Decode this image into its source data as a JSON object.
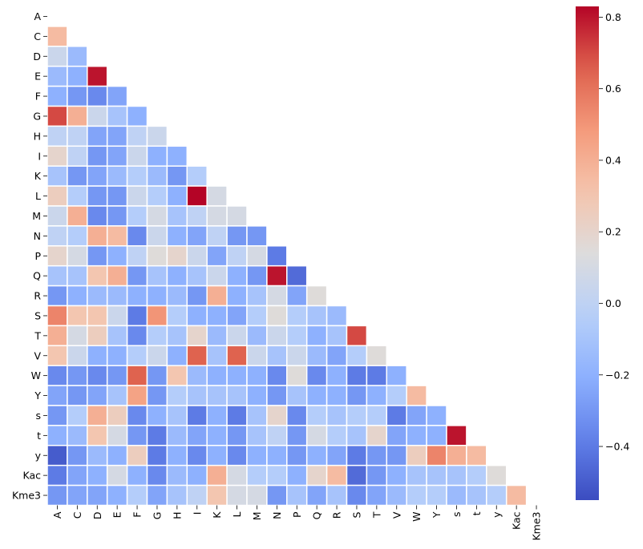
{
  "chart_data": {
    "type": "heatmap",
    "title": "",
    "xlabel": "",
    "ylabel": "",
    "mask": "upper-triangle-including-diagonal",
    "labels": [
      "A",
      "C",
      "D",
      "E",
      "F",
      "G",
      "H",
      "I",
      "K",
      "L",
      "M",
      "N",
      "P",
      "Q",
      "R",
      "S",
      "T",
      "V",
      "W",
      "Y",
      "s",
      "t",
      "y",
      "Kac",
      "Kme3"
    ],
    "matrix": [
      [],
      [
        0.35
      ],
      [
        0.05,
        -0.15
      ],
      [
        -0.15,
        -0.2,
        0.8
      ],
      [
        -0.2,
        -0.3,
        -0.35,
        -0.25
      ],
      [
        0.7,
        0.4,
        0.05,
        -0.1,
        -0.2
      ],
      [
        0.0,
        0.0,
        -0.25,
        -0.25,
        0.0,
        0.05
      ],
      [
        0.2,
        0.0,
        -0.3,
        -0.25,
        0.05,
        -0.2,
        -0.2
      ],
      [
        -0.1,
        -0.3,
        -0.25,
        -0.15,
        -0.05,
        -0.15,
        -0.3,
        -0.05
      ],
      [
        0.25,
        -0.05,
        -0.3,
        -0.3,
        0.05,
        -0.05,
        -0.2,
        0.83,
        0.1
      ],
      [
        0.05,
        0.4,
        -0.35,
        -0.3,
        -0.05,
        0.1,
        -0.1,
        0.0,
        0.1,
        0.1
      ],
      [
        0.0,
        -0.05,
        0.4,
        0.35,
        -0.35,
        0.05,
        -0.2,
        -0.25,
        0.0,
        -0.3,
        -0.3
      ],
      [
        0.2,
        0.1,
        -0.3,
        -0.2,
        0.0,
        0.15,
        0.2,
        0.05,
        -0.25,
        0.0,
        0.1,
        -0.4
      ],
      [
        -0.1,
        -0.1,
        0.3,
        0.4,
        -0.3,
        -0.1,
        -0.2,
        -0.1,
        0.05,
        -0.2,
        -0.3,
        0.8,
        -0.45
      ],
      [
        -0.3,
        -0.2,
        -0.15,
        -0.15,
        -0.2,
        -0.2,
        -0.15,
        -0.3,
        0.4,
        -0.2,
        -0.1,
        0.1,
        -0.25,
        0.15
      ],
      [
        0.55,
        0.3,
        0.3,
        0.05,
        -0.4,
        0.5,
        -0.05,
        -0.2,
        -0.2,
        -0.25,
        -0.05,
        0.15,
        -0.05,
        -0.1,
        -0.15
      ],
      [
        0.4,
        0.1,
        0.25,
        -0.1,
        -0.35,
        -0.05,
        -0.1,
        0.2,
        -0.15,
        0.05,
        -0.15,
        0.05,
        -0.05,
        -0.2,
        -0.1,
        0.7
      ],
      [
        0.3,
        0.05,
        -0.2,
        -0.2,
        -0.05,
        0.05,
        -0.2,
        0.65,
        -0.1,
        0.65,
        0.05,
        -0.1,
        0.05,
        -0.15,
        -0.25,
        -0.05,
        0.15
      ],
      [
        -0.35,
        -0.3,
        -0.35,
        -0.3,
        0.65,
        -0.3,
        0.3,
        -0.15,
        -0.2,
        -0.2,
        -0.2,
        -0.35,
        0.15,
        -0.35,
        -0.2,
        -0.4,
        -0.4,
        -0.2
      ],
      [
        -0.25,
        -0.3,
        -0.25,
        -0.1,
        0.45,
        -0.3,
        -0.05,
        -0.1,
        -0.1,
        -0.1,
        -0.2,
        -0.3,
        -0.1,
        -0.2,
        -0.2,
        -0.3,
        -0.2,
        -0.05,
        0.35
      ],
      [
        -0.3,
        -0.05,
        0.4,
        0.25,
        -0.35,
        -0.2,
        -0.1,
        -0.4,
        -0.2,
        -0.4,
        -0.1,
        0.2,
        -0.35,
        -0.05,
        -0.1,
        -0.05,
        -0.05,
        -0.4,
        -0.25,
        -0.2
      ],
      [
        -0.2,
        -0.15,
        0.3,
        0.1,
        -0.3,
        -0.4,
        -0.15,
        -0.25,
        -0.2,
        -0.3,
        -0.1,
        0.0,
        -0.3,
        0.1,
        -0.05,
        -0.1,
        0.2,
        -0.25,
        -0.2,
        -0.2,
        0.8
      ],
      [
        -0.5,
        -0.3,
        -0.15,
        -0.2,
        0.25,
        -0.4,
        -0.2,
        -0.35,
        -0.2,
        -0.35,
        -0.2,
        -0.2,
        -0.3,
        -0.2,
        -0.25,
        -0.4,
        -0.3,
        -0.3,
        0.25,
        0.55,
        0.4,
        0.35
      ],
      [
        -0.4,
        -0.25,
        -0.2,
        0.1,
        -0.2,
        -0.35,
        -0.15,
        -0.2,
        0.4,
        0.1,
        -0.05,
        -0.05,
        -0.2,
        0.2,
        0.35,
        -0.45,
        -0.3,
        -0.2,
        -0.1,
        -0.1,
        -0.1,
        -0.05,
        0.15
      ],
      [
        -0.3,
        -0.25,
        -0.25,
        -0.2,
        -0.05,
        -0.25,
        -0.1,
        0.0,
        0.3,
        0.1,
        0.1,
        -0.3,
        -0.1,
        -0.25,
        -0.1,
        -0.35,
        -0.25,
        -0.15,
        -0.05,
        -0.05,
        -0.15,
        -0.1,
        -0.05,
        0.35
      ]
    ],
    "colorbar": {
      "colormap": "coolwarm",
      "vmin": -0.55,
      "vmax": 0.83,
      "ticks": [
        -0.4,
        -0.2,
        0.0,
        0.2,
        0.4,
        0.6,
        0.8
      ],
      "tick_labels": [
        "−0.4",
        "−0.2",
        "0.0",
        "0.2",
        "0.4",
        "0.6",
        "0.8"
      ]
    }
  }
}
